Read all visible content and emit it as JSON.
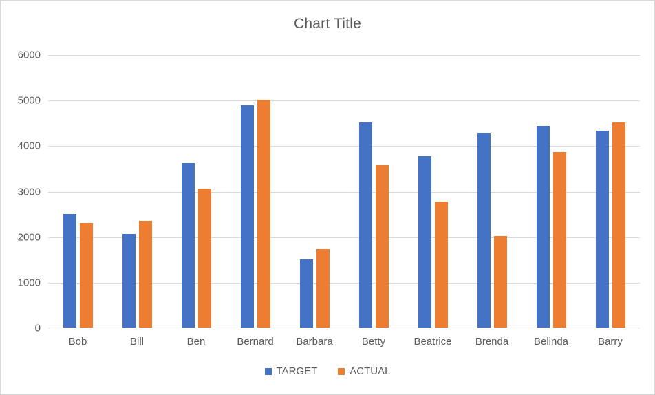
{
  "chart_data": {
    "type": "bar",
    "title": "Chart Title",
    "xlabel": "",
    "ylabel": "",
    "categories": [
      "Bob",
      "Bill",
      "Ben",
      "Bernard",
      "Barbara",
      "Betty",
      "Beatrice",
      "Brenda",
      "Belinda",
      "Barry"
    ],
    "series": [
      {
        "name": "TARGET",
        "color": "#4472C4",
        "values": [
          2500,
          2050,
          3610,
          4880,
          1500,
          4500,
          3760,
          4270,
          4430,
          4330
        ]
      },
      {
        "name": "ACTUAL",
        "color": "#ED7D31",
        "values": [
          2290,
          2350,
          3050,
          5000,
          1720,
          3570,
          2760,
          2010,
          3850,
          4500
        ]
      }
    ],
    "ylim": [
      0,
      6000
    ],
    "ytick_interval": 1000,
    "ytick_labels": [
      "0",
      "1000",
      "2000",
      "3000",
      "4000",
      "5000",
      "6000"
    ],
    "grid": "horizontal",
    "legend_position": "bottom"
  },
  "styles": {
    "title_color": "#595959",
    "axis_text_color": "#595959",
    "gridline_color": "#d9d9d9",
    "border_color": "#d9d9d9",
    "background_color": "#ffffff"
  }
}
